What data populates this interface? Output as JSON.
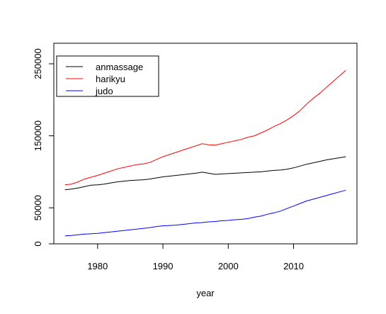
{
  "chart_data": {
    "type": "line",
    "title": "",
    "xlabel": "year",
    "ylabel": "",
    "xlim": [
      1973.3,
      2019.7
    ],
    "ylim": [
      0,
      250000
    ],
    "x_ticks": [
      1980,
      1990,
      2000,
      2010
    ],
    "y_ticks": [
      0,
      50000,
      150000,
      250000
    ],
    "x_tick_labels": [
      "1980",
      "1990",
      "2000",
      "2010"
    ],
    "y_tick_labels": [
      "0",
      "50000",
      "150000",
      "250000"
    ],
    "grid": false,
    "legend": {
      "position": "top-left"
    },
    "series": [
      {
        "name": "anmassage",
        "color": "#000000",
        "x": [
          1975,
          1976,
          1977,
          1978,
          1979,
          1980,
          1981,
          1982,
          1983,
          1984,
          1985,
          1986,
          1987,
          1988,
          1989,
          1990,
          1991,
          1992,
          1993,
          1994,
          1995,
          1996,
          1997,
          1998,
          1999,
          2000,
          2001,
          2002,
          2003,
          2004,
          2005,
          2006,
          2007,
          2008,
          2009,
          2010,
          2011,
          2012,
          2013,
          2014,
          2015,
          2016,
          2017,
          2018
        ],
        "y": [
          75000,
          76000,
          77500,
          79500,
          81500,
          82000,
          83000,
          84500,
          86000,
          87000,
          88000,
          88500,
          89000,
          90000,
          91500,
          93000,
          94000,
          95000,
          96000,
          97000,
          98000,
          99500,
          98000,
          96500,
          97000,
          97500,
          98000,
          98500,
          99000,
          99500,
          100000,
          101000,
          102000,
          102500,
          103500,
          105500,
          108000,
          110500,
          112500,
          114500,
          116500,
          118000,
          119500,
          121000
        ]
      },
      {
        "name": "harikyu",
        "color": "#ff0000",
        "x": [
          1975,
          1976,
          1977,
          1978,
          1979,
          1980,
          1981,
          1982,
          1983,
          1984,
          1985,
          1986,
          1987,
          1988,
          1989,
          1990,
          1991,
          1992,
          1993,
          1994,
          1995,
          1996,
          1997,
          1998,
          1999,
          2000,
          2001,
          2002,
          2003,
          2004,
          2005,
          2006,
          2007,
          2008,
          2009,
          2010,
          2011,
          2012,
          2013,
          2014,
          2015,
          2016,
          2017,
          2018
        ],
        "y": [
          82000,
          83000,
          86000,
          90000,
          92500,
          95000,
          98000,
          101000,
          104000,
          106000,
          108000,
          110000,
          111000,
          113000,
          117000,
          121000,
          124000,
          127000,
          130000,
          133000,
          136000,
          139000,
          137500,
          137000,
          139000,
          141000,
          143000,
          145000,
          148000,
          150000,
          154000,
          158000,
          163000,
          167000,
          172000,
          178000,
          185000,
          194000,
          202000,
          209000,
          217000,
          225000,
          233000,
          241000
        ]
      },
      {
        "name": "judo",
        "color": "#0000ff",
        "x": [
          1975,
          1976,
          1977,
          1978,
          1979,
          1980,
          1981,
          1982,
          1983,
          1984,
          1985,
          1986,
          1987,
          1988,
          1989,
          1990,
          1991,
          1992,
          1993,
          1994,
          1995,
          1996,
          1997,
          1998,
          1999,
          2000,
          2001,
          2002,
          2003,
          2004,
          2005,
          2006,
          2007,
          2008,
          2009,
          2010,
          2011,
          2012,
          2013,
          2014,
          2015,
          2016,
          2017,
          2018
        ],
        "y": [
          11000,
          11500,
          12500,
          13500,
          14000,
          14500,
          15500,
          16500,
          17500,
          18500,
          19500,
          20500,
          21500,
          22500,
          24000,
          25000,
          25500,
          26000,
          27000,
          28000,
          29000,
          29500,
          30500,
          31000,
          32000,
          32500,
          33500,
          34000,
          35000,
          37000,
          38500,
          41000,
          43000,
          45500,
          49000,
          52500,
          56000,
          59500,
          62000,
          64500,
          67000,
          69500,
          72000,
          74500
        ]
      }
    ]
  }
}
